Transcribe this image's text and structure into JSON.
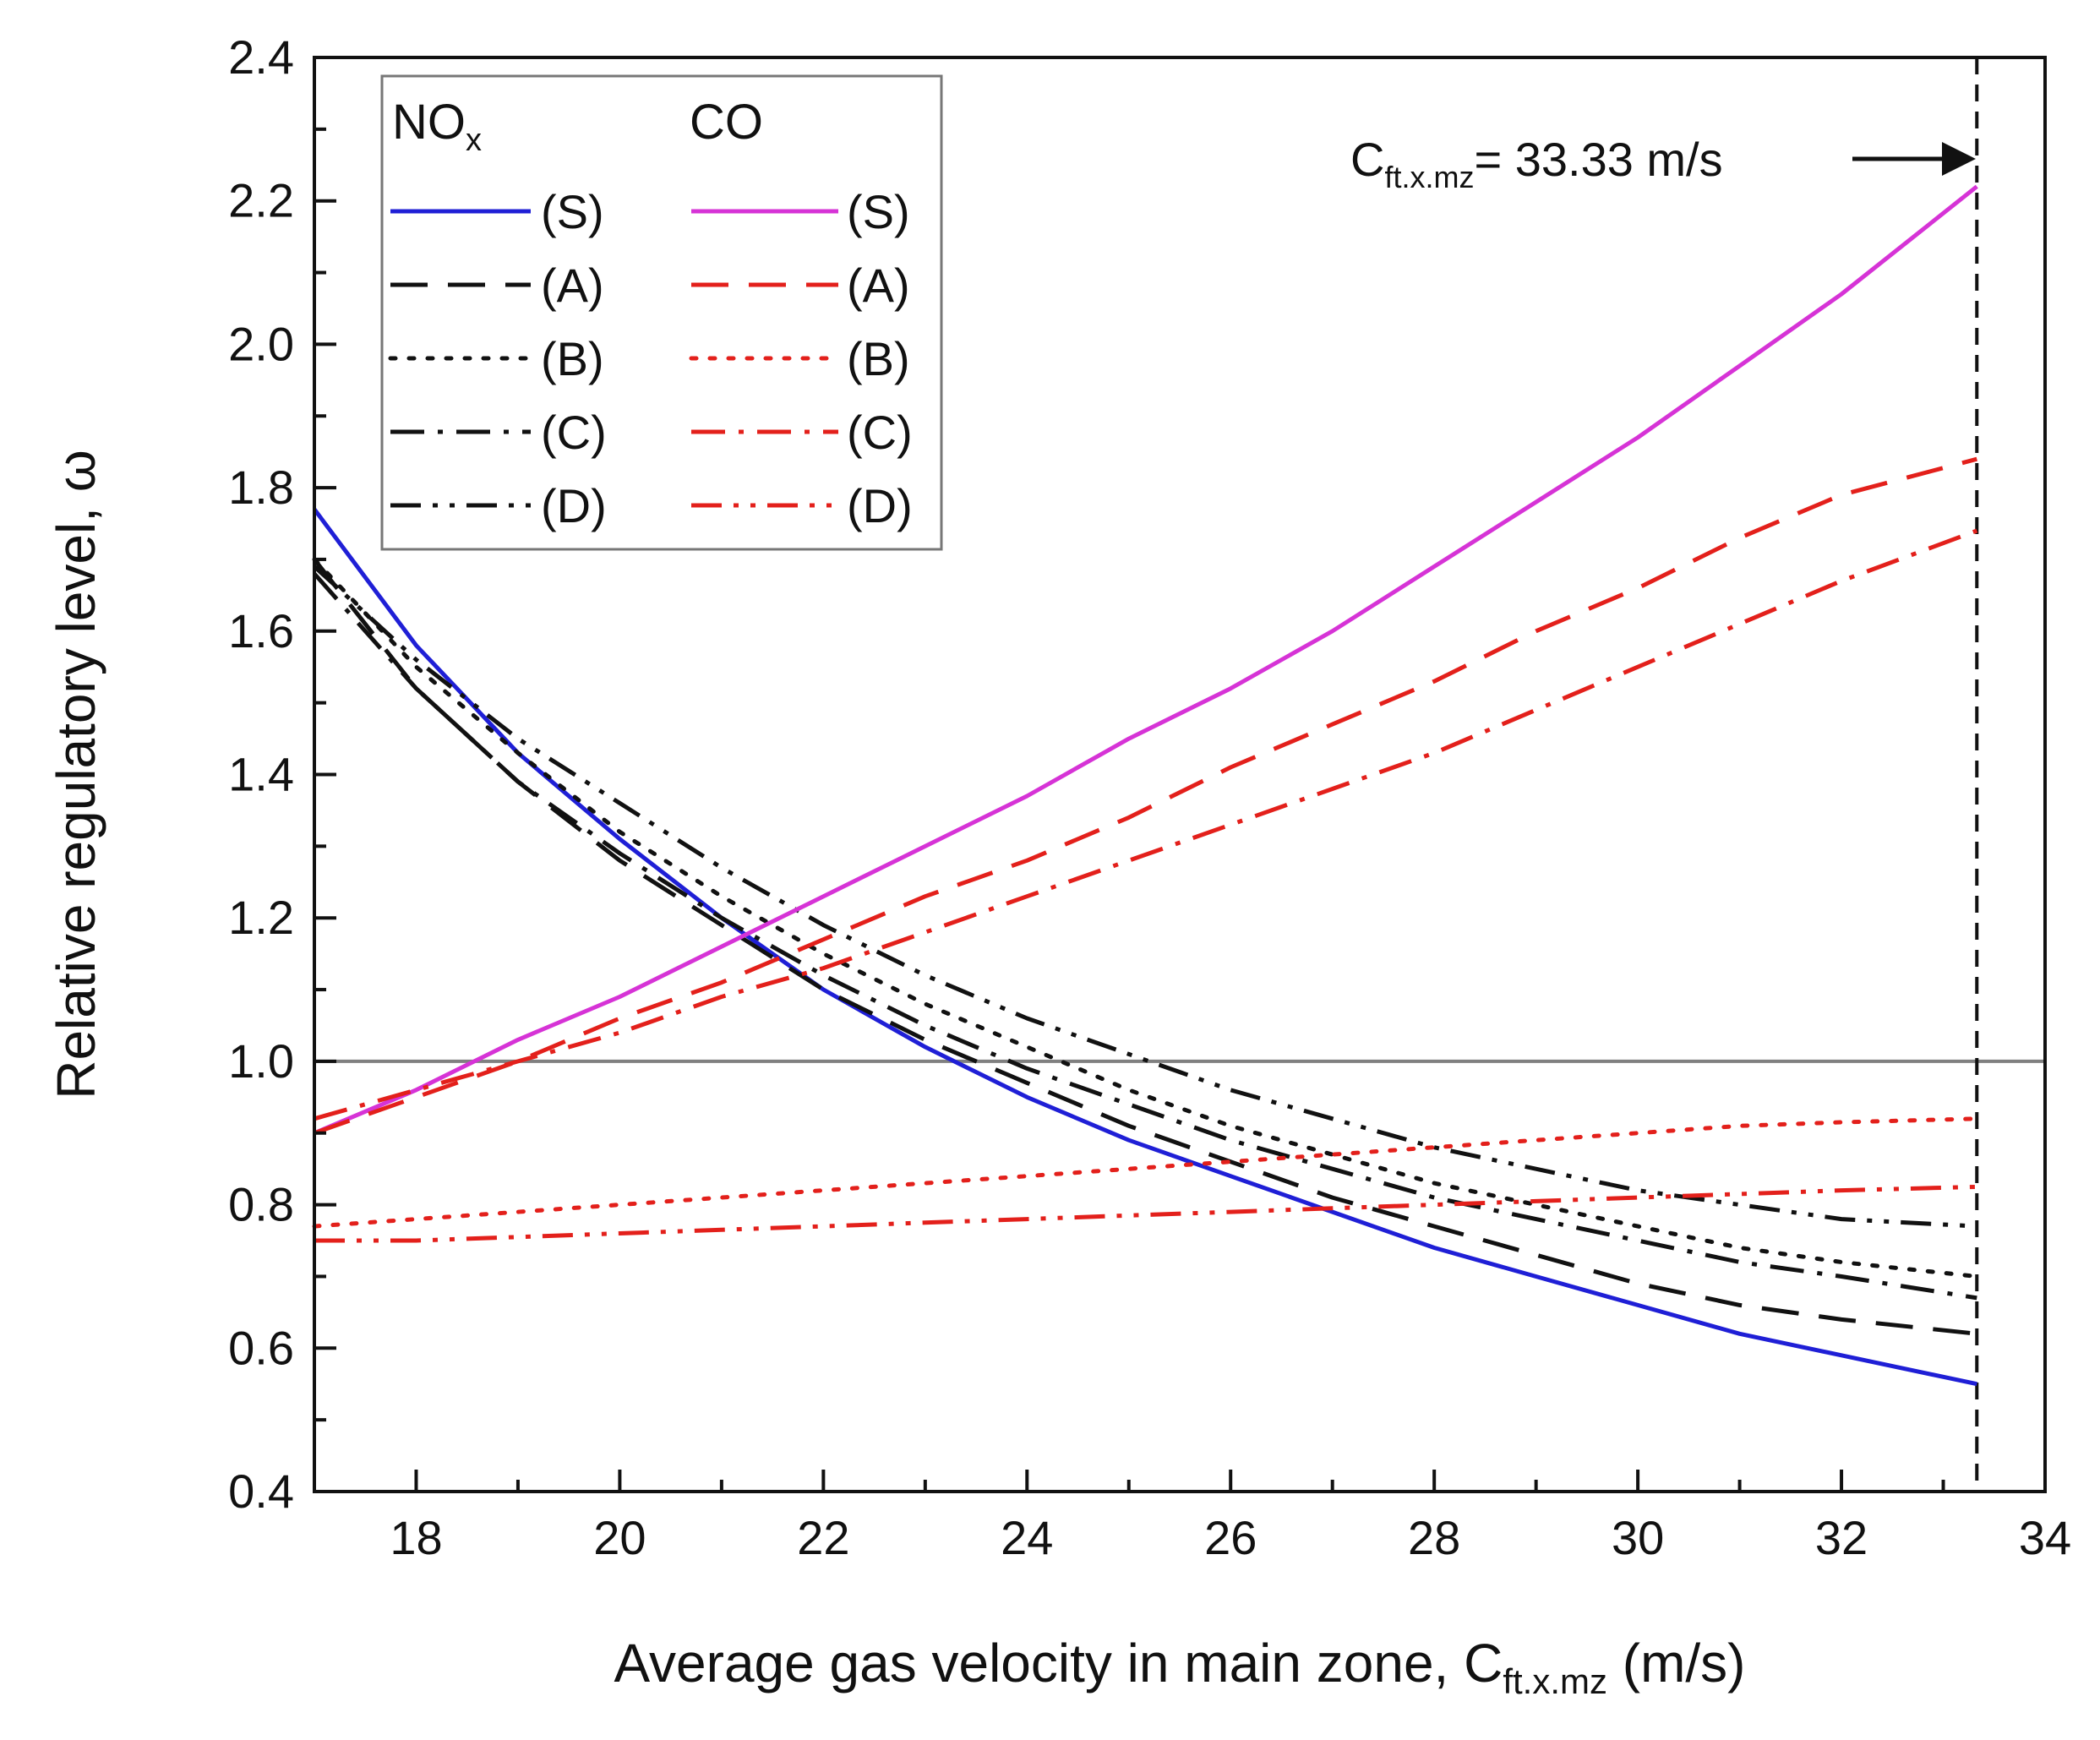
{
  "chart_data": {
    "type": "line",
    "title": "",
    "xlabel": "Average gas velocity in main zone, C",
    "xlabel_sub": "ft.x.mz",
    "xlabel_unit": " (m/s)",
    "ylabel": "Relative regulatory level, ω",
    "xlim": [
      17,
      34
    ],
    "ylim": [
      0.4,
      2.4
    ],
    "x_ticks": [
      18,
      20,
      22,
      24,
      26,
      28,
      30,
      32,
      34
    ],
    "y_ticks": [
      0.4,
      0.6,
      0.8,
      1.0,
      1.2,
      1.4,
      1.6,
      1.8,
      2.0,
      2.2,
      2.4
    ],
    "reference_line": {
      "y": 1.0,
      "color": "#808080"
    },
    "vertical_line": {
      "x": 33.33
    },
    "annotation": {
      "prefix": "C",
      "subscript": "ft.x.mz",
      "suffix": "= 33.33 m/s"
    },
    "legend": {
      "position": "top-left",
      "group_titles": [
        "NO",
        "CO"
      ],
      "nox_subscript": "x",
      "entries": [
        {
          "nox": "(S)",
          "co": "(S)"
        },
        {
          "nox": "(A)",
          "co": "(A)"
        },
        {
          "nox": "(B)",
          "co": "(B)"
        },
        {
          "nox": "(C)",
          "co": "(C)"
        },
        {
          "nox": "(D)",
          "co": "(D)"
        }
      ]
    },
    "x": [
      17,
      18,
      19,
      20,
      21,
      22,
      23,
      24,
      25,
      26,
      27,
      28,
      29,
      30,
      31,
      32,
      33.33
    ],
    "series": [
      {
        "name": "NOx (S)",
        "group": "NOx",
        "style": "solid",
        "color": "#1f1fd6",
        "values": [
          1.77,
          1.58,
          1.43,
          1.31,
          1.2,
          1.1,
          1.02,
          0.95,
          0.89,
          0.84,
          0.79,
          0.74,
          0.7,
          0.66,
          0.62,
          0.59,
          0.55
        ]
      },
      {
        "name": "NOx (A)",
        "group": "NOx",
        "style": "dash",
        "color": "#111111",
        "values": [
          1.7,
          1.52,
          1.39,
          1.28,
          1.19,
          1.1,
          1.03,
          0.97,
          0.91,
          0.86,
          0.81,
          0.77,
          0.73,
          0.69,
          0.66,
          0.64,
          0.62
        ]
      },
      {
        "name": "NOx (B)",
        "group": "NOx",
        "style": "dot",
        "color": "#111111",
        "values": [
          1.7,
          1.55,
          1.43,
          1.32,
          1.23,
          1.15,
          1.08,
          1.02,
          0.96,
          0.91,
          0.87,
          0.83,
          0.8,
          0.77,
          0.74,
          0.72,
          0.7
        ]
      },
      {
        "name": "NOx (C)",
        "group": "NOx",
        "style": "dashdot",
        "color": "#111111",
        "values": [
          1.68,
          1.52,
          1.39,
          1.29,
          1.2,
          1.12,
          1.05,
          0.99,
          0.94,
          0.89,
          0.85,
          0.81,
          0.78,
          0.75,
          0.72,
          0.7,
          0.67
        ]
      },
      {
        "name": "NOx (D)",
        "group": "NOx",
        "style": "dashdotdot",
        "color": "#111111",
        "values": [
          1.69,
          1.56,
          1.45,
          1.36,
          1.27,
          1.19,
          1.12,
          1.06,
          1.01,
          0.96,
          0.92,
          0.88,
          0.85,
          0.82,
          0.8,
          0.78,
          0.77
        ]
      },
      {
        "name": "CO (S)",
        "group": "CO",
        "style": "solid",
        "color": "#d633d6",
        "values": [
          0.9,
          0.96,
          1.03,
          1.09,
          1.16,
          1.23,
          1.3,
          1.37,
          1.45,
          1.52,
          1.6,
          1.69,
          1.78,
          1.87,
          1.97,
          2.07,
          2.22
        ]
      },
      {
        "name": "CO (A)",
        "group": "CO",
        "style": "dash",
        "color": "#e3201b",
        "values": [
          0.9,
          0.95,
          1.0,
          1.06,
          1.11,
          1.17,
          1.23,
          1.28,
          1.34,
          1.41,
          1.47,
          1.53,
          1.6,
          1.66,
          1.73,
          1.79,
          1.84
        ]
      },
      {
        "name": "CO (B)",
        "group": "CO",
        "style": "dot",
        "color": "#e3201b",
        "values": [
          0.77,
          0.78,
          0.79,
          0.8,
          0.81,
          0.82,
          0.83,
          0.84,
          0.85,
          0.86,
          0.87,
          0.88,
          0.89,
          0.9,
          0.91,
          0.915,
          0.92
        ]
      },
      {
        "name": "CO (C)",
        "group": "CO",
        "style": "dashdot",
        "color": "#e3201b",
        "values": [
          0.92,
          0.96,
          1.0,
          1.04,
          1.09,
          1.13,
          1.18,
          1.23,
          1.28,
          1.33,
          1.38,
          1.43,
          1.49,
          1.55,
          1.61,
          1.67,
          1.74
        ]
      },
      {
        "name": "CO (D)",
        "group": "CO",
        "style": "dashdotdot",
        "color": "#e3201b",
        "values": [
          0.75,
          0.75,
          0.755,
          0.76,
          0.765,
          0.77,
          0.775,
          0.78,
          0.785,
          0.79,
          0.795,
          0.8,
          0.805,
          0.81,
          0.815,
          0.82,
          0.825
        ]
      }
    ]
  }
}
